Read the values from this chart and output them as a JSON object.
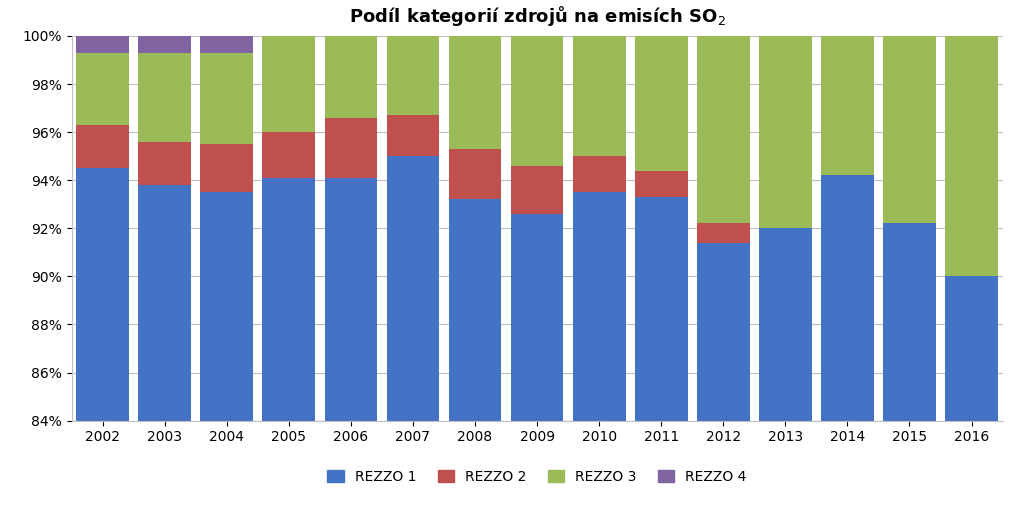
{
  "years": [
    2002,
    2003,
    2004,
    2005,
    2006,
    2007,
    2008,
    2009,
    2010,
    2011,
    2012,
    2013,
    2014,
    2015,
    2016
  ],
  "rezzo1": [
    94.5,
    93.8,
    93.5,
    94.1,
    94.1,
    95.0,
    93.2,
    92.6,
    93.5,
    93.3,
    91.4,
    92.0,
    94.2,
    92.2,
    90.0
  ],
  "rezzo2": [
    1.8,
    1.8,
    2.0,
    1.9,
    2.5,
    1.7,
    2.1,
    2.0,
    1.5,
    1.1,
    0.8,
    0.0,
    0.0,
    0.0,
    0.0
  ],
  "rezzo3": [
    3.0,
    3.7,
    3.8,
    4.0,
    3.4,
    3.3,
    4.7,
    5.4,
    5.0,
    5.6,
    7.8,
    8.0,
    5.8,
    7.8,
    10.0
  ],
  "rezzo4": [
    0.7,
    0.7,
    0.7,
    0.0,
    0.0,
    0.0,
    0.0,
    0.0,
    0.0,
    0.0,
    0.0,
    0.0,
    0.0,
    0.0,
    0.0
  ],
  "colors": {
    "rezzo1": "#4472C4",
    "rezzo2": "#C0504D",
    "rezzo3": "#9BBB59",
    "rezzo4": "#8064A2"
  },
  "ymin": 84,
  "ymax": 100,
  "figsize": [
    10.23,
    5.13
  ],
  "dpi": 100,
  "bar_width": 0.85,
  "title_fontsize": 13,
  "tick_fontsize": 10,
  "legend_fontsize": 10
}
